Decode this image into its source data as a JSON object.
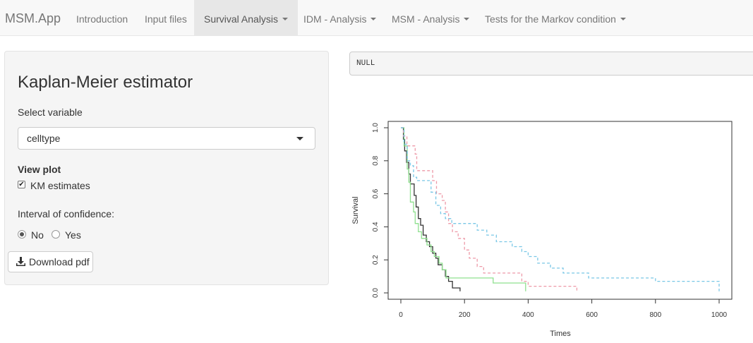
{
  "navbar": {
    "brand": "MSM.App",
    "items": [
      {
        "label": "Introduction"
      },
      {
        "label": "Input files"
      },
      {
        "label": "Survival Analysis"
      },
      {
        "label": "IDM - Analysis"
      },
      {
        "label": "MSM - Analysis"
      },
      {
        "label": "Tests for the Markov condition"
      }
    ]
  },
  "sidebar": {
    "title": "Kaplan-Meier estimator",
    "select_label": "Select variable",
    "select_value": "celltype",
    "view_plot_label": "View plot",
    "km_label": "KM estimates",
    "km_checked": true,
    "ci_label": "Interval of confidence:",
    "ci_options": [
      "No",
      "Yes"
    ],
    "ci_selected": "No",
    "download_label": "Download pdf"
  },
  "output": {
    "text": "NULL"
  },
  "chart_data": {
    "type": "line",
    "xlabel": "Times",
    "ylabel": "Survival",
    "xlim": [
      0,
      1000
    ],
    "ylim": [
      0,
      1
    ],
    "x_ticks": [
      "0",
      "200",
      "400",
      "600",
      "800",
      "1000"
    ],
    "y_ticks": [
      "0.0",
      "0.2",
      "0.4",
      "0.6",
      "0.8",
      "1.0"
    ],
    "grid": false,
    "series": [
      {
        "color": "#333333",
        "dash": false,
        "points": [
          [
            0,
            1
          ],
          [
            8,
            0.93
          ],
          [
            12,
            0.86
          ],
          [
            18,
            0.79
          ],
          [
            25,
            0.72
          ],
          [
            30,
            0.66
          ],
          [
            42,
            0.59
          ],
          [
            48,
            0.52
          ],
          [
            55,
            0.45
          ],
          [
            62,
            0.41
          ],
          [
            70,
            0.35
          ],
          [
            80,
            0.31
          ],
          [
            90,
            0.28
          ],
          [
            100,
            0.24
          ],
          [
            110,
            0.21
          ],
          [
            117,
            0.17
          ],
          [
            130,
            0.14
          ],
          [
            140,
            0.1
          ],
          [
            150,
            0.07
          ],
          [
            162,
            0.03
          ],
          [
            186,
            0.03
          ],
          [
            186,
            0.01
          ]
        ]
      },
      {
        "color": "#8fe08f",
        "dash": false,
        "points": [
          [
            0,
            1
          ],
          [
            10,
            0.89
          ],
          [
            20,
            0.75
          ],
          [
            25,
            0.67
          ],
          [
            30,
            0.55
          ],
          [
            40,
            0.49
          ],
          [
            45,
            0.42
          ],
          [
            55,
            0.37
          ],
          [
            65,
            0.33
          ],
          [
            82,
            0.33
          ],
          [
            82,
            0.29
          ],
          [
            95,
            0.25
          ],
          [
            105,
            0.22
          ],
          [
            120,
            0.18
          ],
          [
            130,
            0.14
          ],
          [
            142,
            0.09
          ],
          [
            200,
            0.09
          ],
          [
            290,
            0.09
          ],
          [
            290,
            0.06
          ],
          [
            385,
            0.06
          ],
          [
            392,
            0.02
          ],
          [
            392,
            0.01
          ]
        ]
      },
      {
        "color": "#ee9aa8",
        "dash": true,
        "points": [
          [
            0,
            1
          ],
          [
            8,
            0.95
          ],
          [
            19,
            0.89
          ],
          [
            45,
            0.84
          ],
          [
            50,
            0.74
          ],
          [
            90,
            0.74
          ],
          [
            100,
            0.68
          ],
          [
            112,
            0.6
          ],
          [
            130,
            0.56
          ],
          [
            140,
            0.49
          ],
          [
            150,
            0.42
          ],
          [
            162,
            0.37
          ],
          [
            180,
            0.33
          ],
          [
            200,
            0.26
          ],
          [
            215,
            0.21
          ],
          [
            240,
            0.16
          ],
          [
            260,
            0.12
          ],
          [
            340,
            0.12
          ],
          [
            380,
            0.07
          ],
          [
            400,
            0.04
          ],
          [
            550,
            0.04
          ],
          [
            553,
            0.01
          ]
        ]
      },
      {
        "color": "#79c7e6",
        "dash": true,
        "points": [
          [
            0,
            1
          ],
          [
            10,
            0.9
          ],
          [
            20,
            0.8
          ],
          [
            30,
            0.77
          ],
          [
            40,
            0.7
          ],
          [
            50,
            0.68
          ],
          [
            75,
            0.68
          ],
          [
            95,
            0.61
          ],
          [
            110,
            0.53
          ],
          [
            125,
            0.48
          ],
          [
            140,
            0.45
          ],
          [
            160,
            0.42
          ],
          [
            230,
            0.42
          ],
          [
            240,
            0.38
          ],
          [
            270,
            0.35
          ],
          [
            300,
            0.31
          ],
          [
            350,
            0.28
          ],
          [
            380,
            0.25
          ],
          [
            400,
            0.22
          ],
          [
            430,
            0.18
          ],
          [
            470,
            0.15
          ],
          [
            510,
            0.12
          ],
          [
            590,
            0.12
          ],
          [
            590,
            0.09
          ],
          [
            750,
            0.09
          ],
          [
            800,
            0.07
          ],
          [
            990,
            0.07
          ],
          [
            1000,
            0.01
          ]
        ]
      }
    ]
  }
}
